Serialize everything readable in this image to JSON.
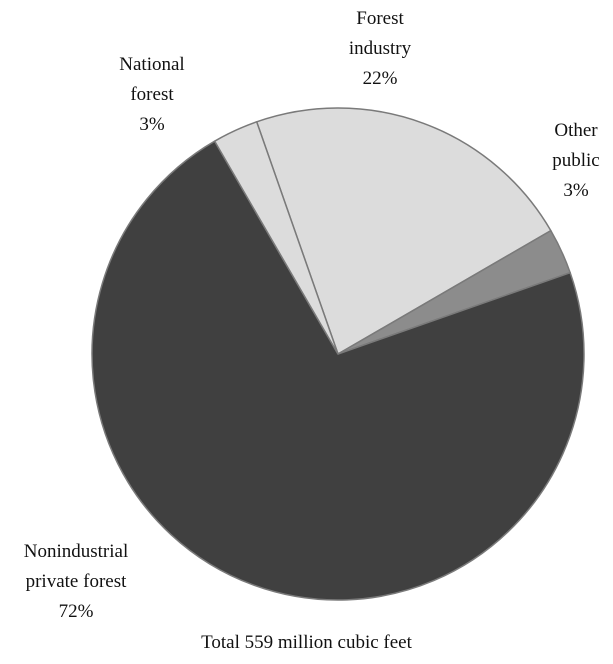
{
  "chart_data": {
    "type": "pie",
    "caption": "Total 559 million cubic feet",
    "slices": [
      {
        "key": "forest-industry",
        "label_lines": [
          "Forest",
          "industry"
        ],
        "value_label": "22%",
        "value": 22,
        "color": "#dcdcdc"
      },
      {
        "key": "other-public",
        "label_lines": [
          "Other",
          "public"
        ],
        "value_label": "3%",
        "value": 3,
        "color": "#8c8c8c"
      },
      {
        "key": "nonindustrial-private-forest",
        "label_lines": [
          "Nonindustrial",
          "private forest"
        ],
        "value_label": "72%",
        "value": 72,
        "color": "#404040"
      },
      {
        "key": "national-forest",
        "label_lines": [
          "National",
          "forest"
        ],
        "value_label": "3%",
        "value": 3,
        "color": "#dcdcdc"
      }
    ]
  }
}
